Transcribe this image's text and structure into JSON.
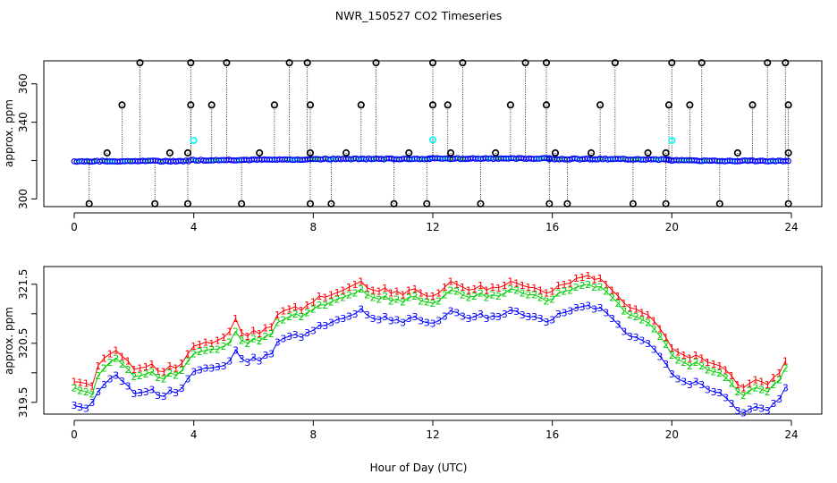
{
  "chart_data": {
    "title": "NWR_150527  CO2 Timeseries",
    "xlabel": "Hour of Day (UTC)",
    "xlim": [
      -0.5,
      24.5
    ],
    "xticks": [
      0,
      4,
      8,
      12,
      16,
      20,
      24
    ],
    "xtick_labels": [
      "0",
      "4",
      "8",
      "12",
      "16",
      "20",
      "24"
    ],
    "colors": {
      "series1": "#ff0000",
      "series2": "#00cc00",
      "series3": "#0000ff",
      "cyan": "#00ffff",
      "ink": "#000000"
    },
    "panels": [
      {
        "type": "scatter",
        "ylabel": "approx. ppm",
        "ylim": [
          296,
          372
        ],
        "yticks": [
          300,
          320,
          340,
          360
        ],
        "ytick_labels": [
          "300",
          "",
          "340",
          "360"
        ],
        "baseline_segments": [
          {
            "x0": 0.0,
            "x1": 3.9,
            "y0": 319.6,
            "y1": 319.8
          },
          {
            "x0": 3.9,
            "x1": 7.9,
            "y0": 320.2,
            "y1": 320.6
          },
          {
            "x0": 7.9,
            "x1": 11.9,
            "y0": 320.8,
            "y1": 320.9
          },
          {
            "x0": 11.9,
            "x1": 15.9,
            "y0": 321.0,
            "y1": 321.1
          },
          {
            "x0": 15.9,
            "x1": 19.9,
            "y0": 320.9,
            "y1": 320.6
          },
          {
            "x0": 19.9,
            "x1": 23.9,
            "y0": 320.0,
            "y1": 319.8
          }
        ],
        "outliers_high": [
          2.2,
          3.9,
          5.1,
          7.2,
          7.8,
          10.1,
          12.0,
          13.0,
          15.1,
          15.8,
          18.1,
          20.0,
          21.0,
          23.2,
          23.8
        ],
        "outliers_mid": [
          1.6,
          3.9,
          4.6,
          6.7,
          7.9,
          9.6,
          12.0,
          12.5,
          14.6,
          15.8,
          17.6,
          19.9,
          20.6,
          22.7,
          23.9
        ],
        "outliers_low": [
          0.5,
          2.7,
          3.8,
          5.6,
          7.9,
          8.6,
          10.7,
          11.8,
          13.6,
          15.9,
          16.5,
          18.7,
          19.8,
          21.6,
          23.9
        ],
        "outliers_small": [
          1.1,
          3.2,
          3.8,
          6.2,
          7.9,
          9.1,
          11.2,
          12.6,
          14.1,
          16.1,
          17.3,
          19.2,
          19.8,
          22.2,
          23.9
        ],
        "cyan_points": [
          [
            4.0,
            330.5
          ],
          [
            12.0,
            330.8
          ],
          [
            20.0,
            330.5
          ]
        ]
      },
      {
        "type": "line",
        "ylabel": "approx. ppm",
        "ylim": [
          319.3,
          321.8
        ],
        "yticks": [
          319.5,
          320.0,
          320.5,
          321.0,
          321.5
        ],
        "ytick_labels": [
          "319.5",
          "",
          "320.5",
          "",
          "321.5"
        ],
        "x": [
          0.0,
          0.2,
          0.4,
          0.6,
          0.8,
          1.0,
          1.2,
          1.4,
          1.6,
          1.8,
          2.0,
          2.2,
          2.4,
          2.6,
          2.8,
          3.0,
          3.2,
          3.4,
          3.6,
          3.8,
          4.0,
          4.2,
          4.4,
          4.6,
          4.8,
          5.0,
          5.2,
          5.4,
          5.6,
          5.8,
          6.0,
          6.2,
          6.4,
          6.6,
          6.8,
          7.0,
          7.2,
          7.4,
          7.6,
          7.8,
          8.0,
          8.2,
          8.4,
          8.6,
          8.8,
          9.0,
          9.2,
          9.4,
          9.6,
          9.8,
          10.0,
          10.2,
          10.4,
          10.6,
          10.8,
          11.0,
          11.2,
          11.4,
          11.6,
          11.8,
          12.0,
          12.2,
          12.4,
          12.6,
          12.8,
          13.0,
          13.2,
          13.4,
          13.6,
          13.8,
          14.0,
          14.2,
          14.4,
          14.6,
          14.8,
          15.0,
          15.2,
          15.4,
          15.6,
          15.8,
          16.0,
          16.2,
          16.4,
          16.6,
          16.8,
          17.0,
          17.2,
          17.4,
          17.6,
          17.8,
          18.0,
          18.2,
          18.4,
          18.6,
          18.8,
          19.0,
          19.2,
          19.4,
          19.6,
          19.8,
          20.0,
          20.2,
          20.4,
          20.6,
          20.8,
          21.0,
          21.2,
          21.4,
          21.6,
          21.8,
          22.0,
          22.2,
          22.4,
          22.6,
          22.8,
          23.0,
          23.2,
          23.4,
          23.6,
          23.8
        ],
        "series": [
          {
            "name": "1",
            "values": [
              319.85,
              319.84,
              319.82,
              319.78,
              320.12,
              320.25,
              320.32,
              320.38,
              320.28,
              320.2,
              320.06,
              320.08,
              320.1,
              320.15,
              320.03,
              320.02,
              320.12,
              320.08,
              320.16,
              320.32,
              320.45,
              320.48,
              320.52,
              320.5,
              320.55,
              320.6,
              320.7,
              320.92,
              320.68,
              320.62,
              320.72,
              320.66,
              320.76,
              320.78,
              320.98,
              321.05,
              321.08,
              321.12,
              321.06,
              321.15,
              321.2,
              321.3,
              321.28,
              321.32,
              321.36,
              321.4,
              321.45,
              321.5,
              321.55,
              321.44,
              321.4,
              321.38,
              321.44,
              321.35,
              321.38,
              321.32,
              321.4,
              321.42,
              321.35,
              321.3,
              321.3,
              321.35,
              321.45,
              321.55,
              321.5,
              321.45,
              321.4,
              321.42,
              321.48,
              321.4,
              321.45,
              321.44,
              321.48,
              321.55,
              321.52,
              321.48,
              321.45,
              321.44,
              321.4,
              321.35,
              321.38,
              321.48,
              321.5,
              321.52,
              321.6,
              321.62,
              321.65,
              321.58,
              321.6,
              321.5,
              321.4,
              321.3,
              321.18,
              321.1,
              321.08,
              321.02,
              320.98,
              320.88,
              320.75,
              320.6,
              320.42,
              320.35,
              320.3,
              320.25,
              320.3,
              320.25,
              320.18,
              320.15,
              320.12,
              320.05,
              319.95,
              319.8,
              319.75,
              319.82,
              319.88,
              319.85,
              319.8,
              319.92,
              320.0,
              320.2
            ]
          },
          {
            "name": "2",
            "values": [
              319.75,
              319.7,
              319.68,
              319.64,
              319.95,
              320.08,
              320.18,
              320.25,
              320.15,
              320.06,
              319.94,
              319.95,
              319.98,
              320.02,
              319.92,
              319.9,
              320.0,
              319.96,
              320.04,
              320.2,
              320.32,
              320.36,
              320.38,
              320.4,
              320.4,
              320.45,
              320.52,
              320.7,
              320.55,
              320.5,
              320.58,
              320.54,
              320.62,
              320.66,
              320.85,
              320.9,
              320.95,
              321.0,
              320.95,
              321.02,
              321.08,
              321.15,
              321.15,
              321.2,
              321.25,
              321.28,
              321.32,
              321.35,
              321.42,
              321.32,
              321.28,
              321.25,
              321.3,
              321.22,
              321.25,
              321.2,
              321.28,
              321.3,
              321.22,
              321.2,
              321.18,
              321.22,
              321.32,
              321.4,
              321.38,
              321.32,
              321.28,
              321.3,
              321.35,
              321.28,
              321.32,
              321.3,
              321.35,
              321.42,
              321.4,
              321.35,
              321.32,
              321.32,
              321.28,
              321.22,
              321.25,
              321.35,
              321.38,
              321.4,
              321.45,
              321.48,
              321.5,
              321.45,
              321.46,
              321.38,
              321.28,
              321.18,
              321.05,
              320.98,
              320.95,
              320.9,
              320.85,
              320.75,
              320.62,
              320.48,
              320.3,
              320.22,
              320.18,
              320.12,
              320.18,
              320.12,
              320.05,
              320.02,
              320.0,
              319.92,
              319.82,
              319.68,
              319.62,
              319.7,
              319.75,
              319.72,
              319.68,
              319.8,
              319.88,
              320.08
            ]
          },
          {
            "name": "3",
            "values": [
              319.45,
              319.42,
              319.4,
              319.5,
              319.68,
              319.8,
              319.9,
              319.96,
              319.86,
              319.78,
              319.65,
              319.66,
              319.68,
              319.72,
              319.62,
              319.6,
              319.7,
              319.66,
              319.74,
              319.9,
              320.02,
              320.05,
              320.08,
              320.08,
              320.1,
              320.12,
              320.2,
              320.38,
              320.24,
              320.18,
              320.26,
              320.2,
              320.3,
              320.32,
              320.52,
              320.58,
              320.62,
              320.65,
              320.6,
              320.68,
              320.72,
              320.8,
              320.8,
              320.85,
              320.9,
              320.92,
              320.96,
              321.0,
              321.08,
              320.98,
              320.92,
              320.9,
              320.95,
              320.88,
              320.9,
              320.85,
              320.92,
              320.95,
              320.88,
              320.85,
              320.84,
              320.88,
              320.96,
              321.05,
              321.02,
              320.96,
              320.92,
              320.95,
              321.0,
              320.92,
              320.96,
              320.95,
              321.0,
              321.06,
              321.04,
              320.98,
              320.95,
              320.95,
              320.92,
              320.86,
              320.9,
              321.0,
              321.02,
              321.05,
              321.1,
              321.12,
              321.14,
              321.08,
              321.1,
              321.02,
              320.92,
              320.82,
              320.7,
              320.62,
              320.6,
              320.55,
              320.5,
              320.4,
              320.28,
              320.15,
              319.98,
              319.9,
              319.85,
              319.8,
              319.85,
              319.8,
              319.72,
              319.68,
              319.66,
              319.58,
              319.48,
              319.36,
              319.32,
              319.38,
              319.42,
              319.4,
              319.36,
              319.48,
              319.56,
              319.75
            ]
          }
        ]
      }
    ]
  }
}
